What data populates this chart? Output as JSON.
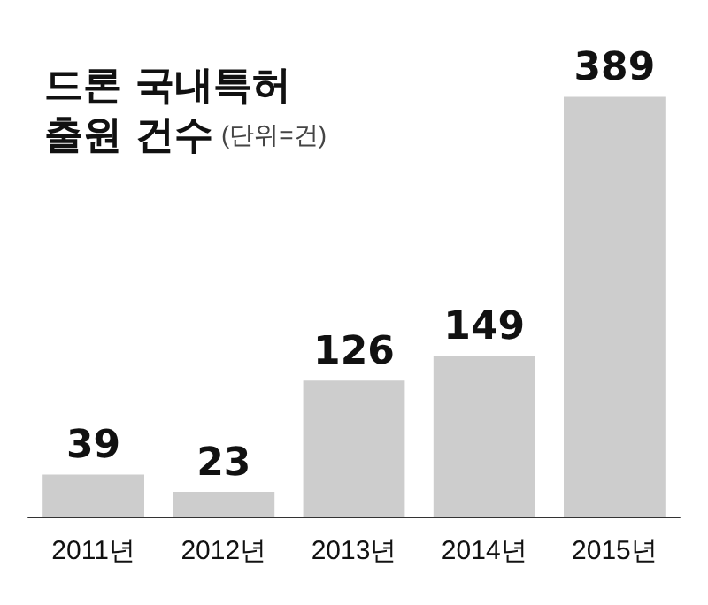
{
  "chart_data": {
    "type": "bar",
    "title": "드론 국내특허 출원 건수",
    "subtitle": "(단위=건)",
    "categories": [
      "2011년",
      "2012년",
      "2013년",
      "2014년",
      "2015년"
    ],
    "values": [
      39,
      23,
      126,
      149,
      389
    ],
    "color": "#cdcdcd",
    "data_labels": true
  }
}
